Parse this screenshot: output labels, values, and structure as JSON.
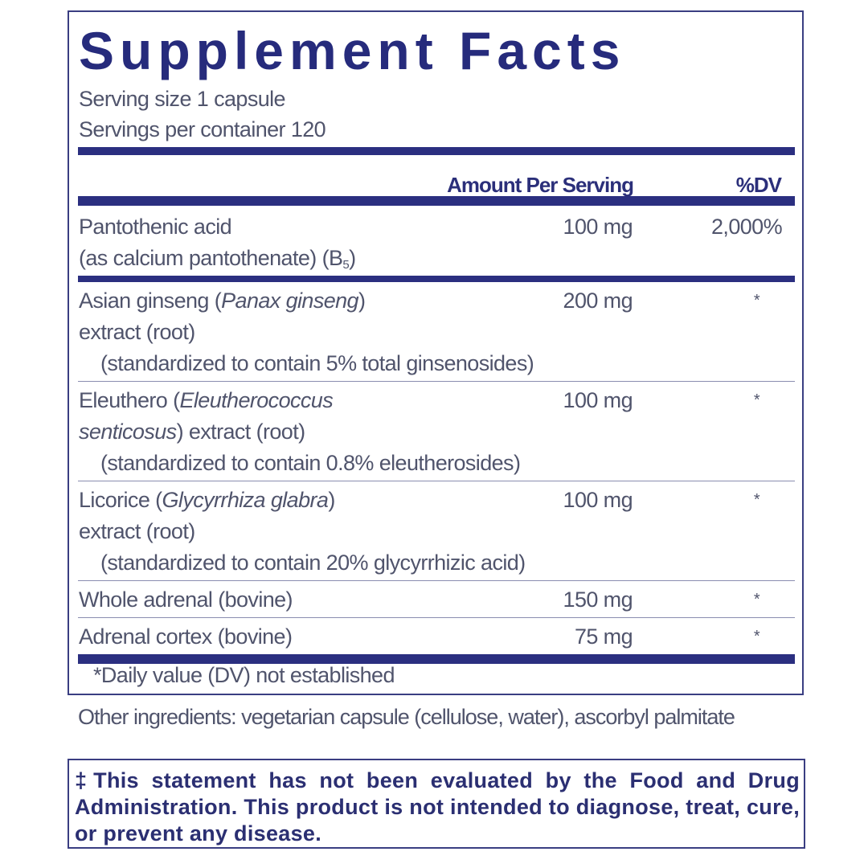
{
  "title": "Supplement Facts",
  "serving_size": "Serving size  1 capsule",
  "servings_per_container": "Servings per container  120",
  "header": {
    "amount": "Amount Per Serving",
    "dv": "%DV"
  },
  "colors": {
    "navy": "#2b2f80",
    "text": "#50546c"
  },
  "ingredients": [
    {
      "lines": [
        [
          {
            "t": "Pantothenic acid"
          }
        ],
        [
          {
            "t": "(as calcium pantothenate) (B"
          },
          {
            "t": "5",
            "sub": true
          },
          {
            "t": ")"
          }
        ]
      ],
      "amount": "100 mg",
      "dv": "2,000%",
      "sep": "thick"
    },
    {
      "lines": [
        [
          {
            "t": "Asian ginseng ("
          },
          {
            "t": "Panax ginseng",
            "i": true
          },
          {
            "t": ")"
          }
        ],
        [
          {
            "t": "extract (root)"
          }
        ],
        [
          {
            "t": "(standardized to contain 5% total ginsenosides)",
            "ind": true
          }
        ]
      ],
      "amount": "200 mg",
      "dv": "*",
      "sep": "thin"
    },
    {
      "lines": [
        [
          {
            "t": "Eleuthero ("
          },
          {
            "t": "Eleutherococcus",
            "i": true
          }
        ],
        [
          {
            "t": "senticosus",
            "i": true
          },
          {
            "t": ") extract (root)"
          }
        ],
        [
          {
            "t": "(standardized to contain 0.8% eleutherosides)",
            "ind": true
          }
        ]
      ],
      "amount": "100 mg",
      "dv": "*",
      "sep": "thin"
    },
    {
      "lines": [
        [
          {
            "t": "Licorice ("
          },
          {
            "t": "Glycyrrhiza glabra",
            "i": true
          },
          {
            "t": ")"
          }
        ],
        [
          {
            "t": "extract (root)"
          }
        ],
        [
          {
            "t": "(standardized to contain 20% glycyrrhizic acid)",
            "ind": true
          }
        ]
      ],
      "amount": "100 mg",
      "dv": "*",
      "sep": "thin"
    },
    {
      "lines": [
        [
          {
            "t": "Whole adrenal (bovine)"
          }
        ]
      ],
      "amount": "150 mg",
      "dv": "*",
      "sep": "thin"
    },
    {
      "lines": [
        [
          {
            "t": "Adrenal cortex (bovine)"
          }
        ]
      ],
      "amount": "75 mg",
      "dv": "*",
      "sep": "thick"
    }
  ],
  "footnote": "*Daily value (DV) not established",
  "other_ingredients": "Other ingredients: vegetarian capsule (cellulose, water), ascorbyl palmitate",
  "disclaimer": "‡This statement has not been evaluated by the Food and Drug Administration. This product is not intended to diagnose, treat, cure, or prevent any disease."
}
